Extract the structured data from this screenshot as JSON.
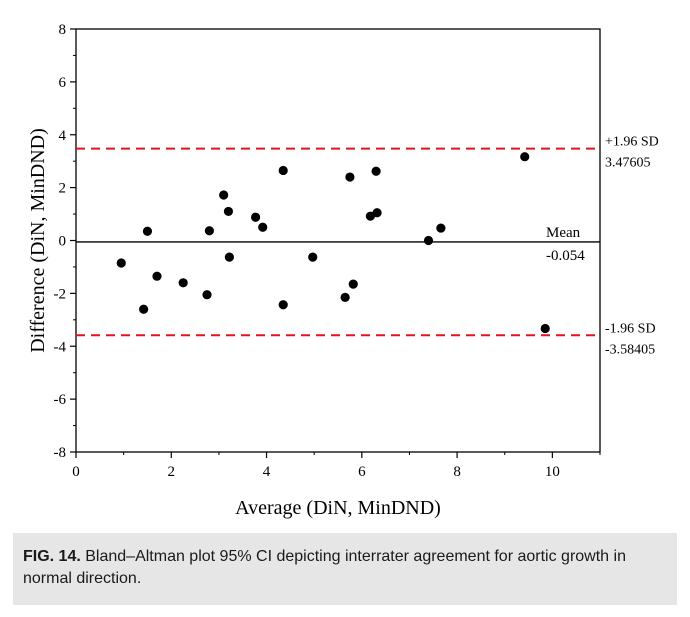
{
  "chart_data": {
    "type": "scatter",
    "xlabel": "Average (DiN, MinDND)",
    "ylabel": "Difference (DiN, MinDND)",
    "xlim": [
      0,
      11
    ],
    "ylim": [
      -8,
      8
    ],
    "x_ticks": [
      0,
      2,
      4,
      6,
      8,
      10
    ],
    "y_ticks": [
      8,
      6,
      4,
      2,
      0,
      -2,
      -4,
      -6,
      -8
    ],
    "x_tick_labels": [
      "0",
      "2",
      "4",
      "6",
      "8",
      "10"
    ],
    "y_tick_labels": [
      "8",
      "6",
      "4",
      "2",
      "0",
      "-2",
      "-4",
      "-6",
      "-8"
    ],
    "grid": false,
    "points": [
      {
        "x": 0.95,
        "y": -0.85
      },
      {
        "x": 1.42,
        "y": -2.6
      },
      {
        "x": 1.5,
        "y": 0.35
      },
      {
        "x": 1.7,
        "y": -1.35
      },
      {
        "x": 2.25,
        "y": -1.6
      },
      {
        "x": 2.75,
        "y": -2.05
      },
      {
        "x": 2.8,
        "y": 0.37
      },
      {
        "x": 3.1,
        "y": 1.72
      },
      {
        "x": 3.2,
        "y": 1.1
      },
      {
        "x": 3.22,
        "y": -0.63
      },
      {
        "x": 3.77,
        "y": 0.88
      },
      {
        "x": 3.92,
        "y": 0.5
      },
      {
        "x": 4.35,
        "y": 2.65
      },
      {
        "x": 4.35,
        "y": -2.43
      },
      {
        "x": 4.97,
        "y": -0.63
      },
      {
        "x": 5.65,
        "y": -2.15
      },
      {
        "x": 5.75,
        "y": 2.4
      },
      {
        "x": 5.82,
        "y": -1.65
      },
      {
        "x": 6.18,
        "y": 0.92
      },
      {
        "x": 6.3,
        "y": 2.62
      },
      {
        "x": 6.32,
        "y": 1.05
      },
      {
        "x": 7.4,
        "y": 0.0
      },
      {
        "x": 7.66,
        "y": 0.47
      },
      {
        "x": 9.42,
        "y": 3.17
      },
      {
        "x": 9.85,
        "y": -3.33
      }
    ],
    "reference_lines": [
      {
        "y": 3.47605,
        "style": "dashed",
        "color": "#e0141e",
        "label": "+1.96 SD",
        "value_label": "3.47605"
      },
      {
        "y": -0.054,
        "style": "solid",
        "color": "#000000",
        "label": "Mean",
        "value_label": "-0.054"
      },
      {
        "y": -3.58405,
        "style": "dashed",
        "color": "#e0141e",
        "label": "-1.96 SD",
        "value_label": "-3.58405"
      }
    ]
  },
  "caption": {
    "label": "FIG. 14.",
    "text": " Bland–Altman plot 95% CI depicting interrater agreement for aortic growth in normal direction."
  }
}
